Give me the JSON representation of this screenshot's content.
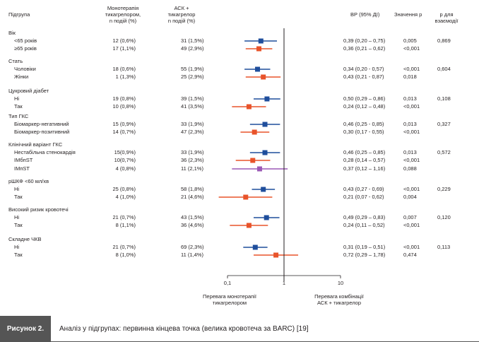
{
  "headers": {
    "subgroup": "Підгрупа",
    "mono": "Монотерапія\nтикагрелором,\nn подій (%)",
    "combo": "АСК +\nтикагрелор\nn подій (%)",
    "hr": "ВР (95% ДІ)",
    "p": "Значення p",
    "pint": "p для\nвзаємодії"
  },
  "colors": {
    "mono": "#1f4e9c",
    "combo": "#e8532a",
    "other": "#9b59b6",
    "axis": "#231f20"
  },
  "chart_data": {
    "type": "forest",
    "x_scale": "log",
    "xlim": [
      0.1,
      10
    ],
    "xticks": [
      "0,1",
      "1",
      "10"
    ],
    "reference_line": 1,
    "xlabel_left": "Перевага монотерапії\nтикагрелором",
    "xlabel_right": "Перевага комбінації\nАСК + тикагрелор",
    "groups": [
      {
        "title": "Вік",
        "p_interaction": "0,869",
        "rows": [
          {
            "label": "<65 років",
            "mono": "12 (0,6%)",
            "combo": "31  (1,5%)",
            "hr": 0.39,
            "lo": 0.2,
            "hi": 0.75,
            "ci": "0,39 (0,20 – 0,75)",
            "p": "0,005",
            "color": "mono"
          },
          {
            "label": "≥65 років",
            "mono": "17 (1,1%)",
            "combo": "49  (2,9%)",
            "hr": 0.36,
            "lo": 0.21,
            "hi": 0.62,
            "ci": "0,36 (0,21 – 0,62)",
            "p": "<0,001",
            "color": "combo"
          }
        ]
      },
      {
        "title": "Стать",
        "p_interaction": "0,604",
        "rows": [
          {
            "label": "Чоловіки",
            "mono": "18 (0,6%)",
            "combo": "55  (1,9%)",
            "hr": 0.34,
            "lo": 0.2,
            "hi": 0.57,
            "ci": "0,34  (0,20 - 0,57)",
            "p": "<0,001",
            "color": "mono"
          },
          {
            "label": "Жінки",
            "mono": "1 (1,3%)",
            "combo": "25  (2,9%)",
            "hr": 0.43,
            "lo": 0.21,
            "hi": 0.87,
            "ci": "0,43  (0,21 - 0,87)",
            "p": "0,018",
            "color": "combo"
          }
        ]
      },
      {
        "title": "Цукровий діабет",
        "p_interaction": "0,108",
        "rows": [
          {
            "label": "Ні",
            "mono": "19 (0,8%)",
            "combo": "39  (1,5%)",
            "hr": 0.5,
            "lo": 0.29,
            "hi": 0.86,
            "ci": "0,50  (0,29 – 0,86)",
            "p": "0,013",
            "color": "mono"
          },
          {
            "label": "Так",
            "mono": "10 (0,8%)",
            "combo": "41  (3,5%)",
            "hr": 0.24,
            "lo": 0.12,
            "hi": 0.48,
            "ci": "0,24  (0,12 – 0,48)",
            "p": "<0,001",
            "color": "combo"
          }
        ]
      },
      {
        "title": "Тип ГКС",
        "p_interaction": "0,327",
        "rows": [
          {
            "label": "Біомаркер-негативний",
            "mono": "15 (0,9%)",
            "combo": "33  (1,9%)",
            "hr": 0.46,
            "lo": 0.25,
            "hi": 0.85,
            "ci": "0,46  (0,25 - 0,85)",
            "p": "0,013",
            "color": "mono"
          },
          {
            "label": "Біомаркер-позитивний",
            "mono": "14 (0,7%)",
            "combo": "47  (2,3%)",
            "hr": 0.3,
            "lo": 0.17,
            "hi": 0.55,
            "ci": "0,30  (0,17 - 0,55)",
            "p": "<0,001",
            "color": "combo"
          }
        ]
      },
      {
        "title": "Клінічний варіант ГКС",
        "p_interaction": "0,572",
        "rows": [
          {
            "label": "Нестабільна стенокардія",
            "mono": "15(0,9%)",
            "combo": "33 (1,9%)",
            "hr": 0.46,
            "lo": 0.25,
            "hi": 0.85,
            "ci": "0,46  (0,25 – 0,85)",
            "p": "0,013",
            "color": "mono"
          },
          {
            "label": "ІМбпST",
            "mono": "10(0,7%)",
            "combo": "36  (2,3%)",
            "hr": 0.28,
            "lo": 0.14,
            "hi": 0.57,
            "ci": "0,28  (0,14 – 0,57)",
            "p": "<0,001",
            "color": "combo"
          },
          {
            "label": "ІМпST",
            "mono": "4  (0,8%)",
            "combo": "11  (2,1%)",
            "hr": 0.37,
            "lo": 0.12,
            "hi": 1.16,
            "ci": "0,37  (0,12 – 1,16)",
            "p": "0,088",
            "color": "other"
          }
        ]
      },
      {
        "title": "рШКФ <60 мл/хв",
        "p_interaction": "0,229",
        "rows": [
          {
            "label": "Ні",
            "mono": "25 (0,8%)",
            "combo": "58  (1,8%)",
            "hr": 0.43,
            "lo": 0.27,
            "hi": 0.69,
            "ci": "0,43  (0,27 - 0,69)",
            "p": "<0,001",
            "color": "mono"
          },
          {
            "label": "Так",
            "mono": "4 (1,0%)",
            "combo": "21  (4,6%)",
            "hr": 0.21,
            "lo": 0.07,
            "hi": 0.62,
            "ci": "0,21  (0,07 - 0,62)",
            "p": "0,004",
            "color": "combo"
          }
        ]
      },
      {
        "title": "Високий ризик кровотечі",
        "p_interaction": "0,120",
        "rows": [
          {
            "label": "Ні",
            "mono": "21 (0,7%)",
            "combo": "43  (1,5%)",
            "hr": 0.49,
            "lo": 0.29,
            "hi": 0.83,
            "ci": "0,49  (0,29 – 0,83)",
            "p": "0,007",
            "color": "mono"
          },
          {
            "label": "Так",
            "mono": "8 (1,1%)",
            "combo": "36  (4,6%)",
            "hr": 0.24,
            "lo": 0.11,
            "hi": 0.52,
            "ci": "0,24  (0,11 – 0,52)",
            "p": "<0,001",
            "color": "combo"
          }
        ]
      },
      {
        "title": "Складне ЧКВ",
        "p_interaction": "0,113",
        "rows": [
          {
            "label": "Ні",
            "mono": "21 (0,7%)",
            "combo": "69  (2,3%)",
            "hr": 0.31,
            "lo": 0.19,
            "hi": 0.51,
            "ci": "0,31  (0,19 – 0,51)",
            "p": "<0,001",
            "color": "mono"
          },
          {
            "label": "Так",
            "mono": "8 (1,0%)",
            "combo": "11  (1,4%)",
            "hr": 0.72,
            "lo": 0.29,
            "hi": 1.78,
            "ci": "0,72  (0,29 – 1,78)",
            "p": "0,474",
            "color": "combo"
          }
        ]
      }
    ]
  },
  "caption": {
    "label": "Рисунок 2.",
    "text": "Аналіз у підгрупах: первинна кінцева точка (велика кровотеча за BARC) [19]"
  }
}
